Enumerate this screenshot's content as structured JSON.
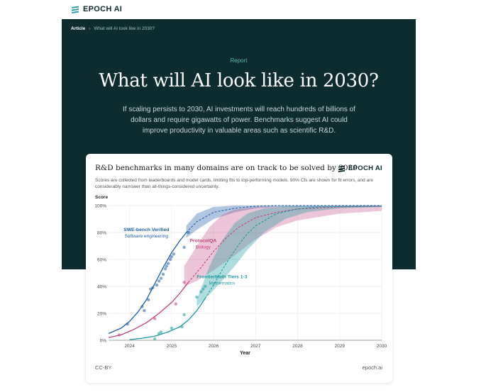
{
  "brand": {
    "name": "EPOCH AI"
  },
  "breadcrumb": {
    "section": "Article",
    "separator": "›",
    "current": "What will AI look like in 2030?"
  },
  "hero": {
    "kicker": "Report",
    "title": "What will AI look like in 2030?",
    "lede": "If scaling persists to 2030, AI investments will reach hundreds of billions of dollars and require gigawatts of power. Benchmarks suggest AI could improve productivity in valuable areas such as scientific R&D."
  },
  "colors": {
    "hero_bg": "#0c2c30",
    "accent": "#5fb7b8",
    "swe": "#1f5fa8",
    "protocol": "#c2407e",
    "frontier": "#1a9aa0"
  },
  "card": {
    "title": "R&D benchmarks in many domains are on track to be solved by 2030",
    "description": "Scores are collected from leaderboards and model cards, limiting fits to top-performing models. 90% CIs are shown for fit errors, and are considerably narrower than all-things-considered uncertainty.",
    "footer_left": "CC-BY",
    "footer_right": "epoch.ai"
  },
  "chart_data": {
    "type": "line",
    "ylabel": "Score",
    "xlabel": "Year",
    "xlim": [
      2023.5,
      2030
    ],
    "ylim": [
      0,
      100
    ],
    "x_ticks": [
      "2024",
      "2025",
      "2026",
      "2027",
      "2028",
      "2029",
      "2030"
    ],
    "y_ticks": [
      "0%",
      "20%",
      "40%",
      "60%",
      "80%",
      "100%"
    ],
    "grid": true,
    "series": [
      {
        "name": "SWE-bench Verified",
        "domain": "Software engineering",
        "color": "#1f5fa8",
        "fit_solid": [
          [
            2023.5,
            5
          ],
          [
            2023.8,
            9
          ],
          [
            2024.0,
            14
          ],
          [
            2024.2,
            21
          ],
          [
            2024.4,
            30
          ],
          [
            2024.6,
            42
          ],
          [
            2024.8,
            54
          ],
          [
            2025.0,
            65
          ],
          [
            2025.2,
            74
          ],
          [
            2025.35,
            80
          ]
        ],
        "fit_dashed": [
          [
            2025.35,
            80
          ],
          [
            2025.6,
            88
          ],
          [
            2026.0,
            95
          ],
          [
            2026.5,
            98
          ],
          [
            2027.0,
            99.5
          ],
          [
            2027.5,
            100
          ],
          [
            2030,
            100
          ]
        ],
        "ci_upper": [
          [
            2025.35,
            85
          ],
          [
            2025.6,
            94
          ],
          [
            2026.0,
            99
          ],
          [
            2026.5,
            100
          ],
          [
            2030,
            100
          ]
        ],
        "ci_lower": [
          [
            2025.35,
            76
          ],
          [
            2025.6,
            82
          ],
          [
            2026.0,
            90
          ],
          [
            2026.5,
            95
          ],
          [
            2027.0,
            98
          ],
          [
            2027.5,
            99
          ],
          [
            2030,
            99.5
          ]
        ],
        "points": [
          [
            2023.95,
            12
          ],
          [
            2024.3,
            25
          ],
          [
            2024.35,
            22
          ],
          [
            2024.45,
            30
          ],
          [
            2024.5,
            38
          ],
          [
            2024.55,
            39
          ],
          [
            2024.65,
            41
          ],
          [
            2024.7,
            44
          ],
          [
            2024.75,
            46
          ],
          [
            2024.8,
            49
          ],
          [
            2024.85,
            53
          ],
          [
            2024.88,
            55
          ],
          [
            2024.92,
            57
          ],
          [
            2024.97,
            60
          ],
          [
            2025.0,
            62
          ],
          [
            2025.05,
            64
          ],
          [
            2025.3,
            69
          ],
          [
            2025.4,
            80
          ]
        ]
      },
      {
        "name": "ProtocolQA",
        "domain": "Biology",
        "color": "#c2407e",
        "fit_solid": [
          [
            2023.5,
            2
          ],
          [
            2023.8,
            4
          ],
          [
            2024.1,
            8
          ],
          [
            2024.4,
            13
          ],
          [
            2024.7,
            20
          ],
          [
            2025.0,
            28
          ],
          [
            2025.2,
            35
          ],
          [
            2025.4,
            43
          ]
        ],
        "fit_dashed": [
          [
            2025.4,
            43
          ],
          [
            2025.7,
            54
          ],
          [
            2026.0,
            66
          ],
          [
            2026.3,
            76
          ],
          [
            2026.6,
            84
          ],
          [
            2027.0,
            91
          ],
          [
            2027.5,
            95
          ],
          [
            2028.0,
            97.5
          ],
          [
            2029.0,
            99
          ],
          [
            2030,
            99.5
          ]
        ],
        "ci_upper": [
          [
            2025.3,
            55
          ],
          [
            2025.6,
            70
          ],
          [
            2025.9,
            84
          ],
          [
            2026.2,
            93
          ],
          [
            2026.5,
            97
          ],
          [
            2027.0,
            99
          ],
          [
            2030,
            100
          ]
        ],
        "ci_lower": [
          [
            2025.3,
            40
          ],
          [
            2025.6,
            44
          ],
          [
            2026.0,
            52
          ],
          [
            2026.5,
            63
          ],
          [
            2027.0,
            75
          ],
          [
            2027.5,
            84
          ],
          [
            2028.0,
            89
          ],
          [
            2029.0,
            94
          ],
          [
            2030,
            96
          ]
        ],
        "points": [
          [
            2023.75,
            4
          ],
          [
            2024.6,
            16
          ],
          [
            2025.3,
            43
          ],
          [
            2025.1,
            27
          ]
        ]
      },
      {
        "name": "FrontierMath Tiers 1-3",
        "domain": "Mathematics",
        "color": "#1a9aa0",
        "fit_solid": [
          [
            2024.0,
            0.5
          ],
          [
            2024.3,
            1.5
          ],
          [
            2024.6,
            3
          ],
          [
            2024.9,
            6
          ],
          [
            2025.2,
            10
          ],
          [
            2025.4,
            15
          ],
          [
            2025.6,
            22
          ],
          [
            2025.8,
            31
          ]
        ],
        "fit_dashed": [
          [
            2025.8,
            31
          ],
          [
            2026.0,
            41
          ],
          [
            2026.2,
            52
          ],
          [
            2026.4,
            62
          ],
          [
            2026.6,
            71
          ],
          [
            2026.8,
            79
          ],
          [
            2027.0,
            85
          ],
          [
            2027.5,
            94
          ],
          [
            2028.0,
            97.5
          ],
          [
            2028.5,
            99
          ],
          [
            2030,
            99.5
          ]
        ],
        "ci_upper": [
          [
            2025.6,
            30
          ],
          [
            2025.9,
            55
          ],
          [
            2026.2,
            74
          ],
          [
            2026.5,
            87
          ],
          [
            2026.8,
            94
          ],
          [
            2027.2,
            98
          ],
          [
            2027.7,
            99.5
          ],
          [
            2030,
            100
          ]
        ],
        "ci_lower": [
          [
            2025.6,
            25
          ],
          [
            2025.9,
            34
          ],
          [
            2026.2,
            44
          ],
          [
            2026.5,
            55
          ],
          [
            2026.8,
            67
          ],
          [
            2027.2,
            80
          ],
          [
            2027.7,
            90
          ],
          [
            2028.2,
            95
          ],
          [
            2029.0,
            98
          ],
          [
            2030,
            99
          ]
        ],
        "points": [
          [
            2024.6,
            1
          ],
          [
            2024.7,
            5
          ],
          [
            2024.75,
            6
          ],
          [
            2025.0,
            9
          ],
          [
            2025.25,
            10
          ],
          [
            2025.3,
            19
          ],
          [
            2025.6,
            32
          ],
          [
            2025.7,
            36
          ],
          [
            2025.75,
            38
          ],
          [
            2025.8,
            40
          ]
        ]
      }
    ]
  }
}
